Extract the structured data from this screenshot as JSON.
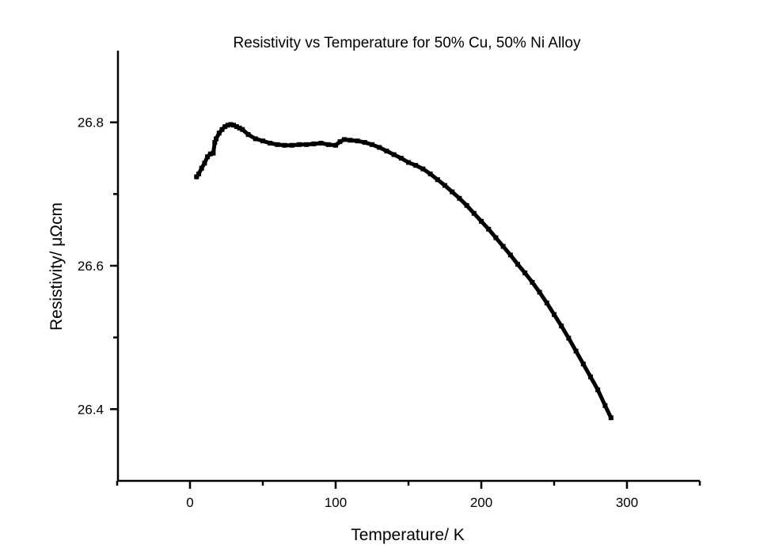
{
  "chart_data": {
    "type": "scatter",
    "title": "Resistivity vs Temperature for 50% Cu, 50% Ni Alloy",
    "xlabel": "Temperature/ K",
    "ylabel": "Resistivity/ μΩcm",
    "xlim": [
      -50,
      350
    ],
    "ylim": [
      26.3,
      26.9
    ],
    "xticks": [
      0,
      100,
      200,
      300
    ],
    "xtick_labels": [
      "0",
      "100",
      "200",
      "300"
    ],
    "x_minor_ticks": [
      -50,
      50,
      150,
      250,
      350
    ],
    "yticks": [
      26.4,
      26.6,
      26.8
    ],
    "ytick_labels": [
      "26.4",
      "26.6",
      "26.8"
    ],
    "y_minor_ticks": [
      26.5,
      26.7
    ],
    "grid": false,
    "legend": "none",
    "series": [
      {
        "name": "Resistivity",
        "color": "#000000",
        "x": [
          4.5,
          6,
          8,
          10,
          12,
          14,
          16,
          17,
          18,
          20,
          22,
          24,
          26,
          28,
          30,
          32,
          34,
          36,
          40,
          45,
          50,
          55,
          60,
          65,
          70,
          75,
          80,
          85,
          90,
          95,
          100,
          103,
          106,
          110,
          115,
          120,
          125,
          130,
          135,
          140,
          145,
          150,
          155,
          160,
          165,
          170,
          175,
          180,
          185,
          190,
          195,
          200,
          205,
          210,
          215,
          220,
          225,
          230,
          235,
          240,
          245,
          250,
          255,
          260,
          265,
          270,
          275,
          280,
          285,
          289
        ],
        "y": [
          26.724,
          26.728,
          26.736,
          26.743,
          26.752,
          26.756,
          26.757,
          26.772,
          26.777,
          26.785,
          26.79,
          26.794,
          26.796,
          26.797,
          26.796,
          26.794,
          26.792,
          26.79,
          26.783,
          26.777,
          26.774,
          26.771,
          26.769,
          26.768,
          26.768,
          26.769,
          26.769,
          26.77,
          26.771,
          26.769,
          26.768,
          26.773,
          26.776,
          26.775,
          26.774,
          26.772,
          26.769,
          26.765,
          26.76,
          26.755,
          26.75,
          26.744,
          26.74,
          26.735,
          26.728,
          26.72,
          26.712,
          26.703,
          26.694,
          26.684,
          26.673,
          26.662,
          26.651,
          26.639,
          26.627,
          26.615,
          26.602,
          26.59,
          26.577,
          26.563,
          26.548,
          26.532,
          26.516,
          26.499,
          26.481,
          26.463,
          26.445,
          26.427,
          26.405,
          26.388
        ]
      }
    ]
  }
}
